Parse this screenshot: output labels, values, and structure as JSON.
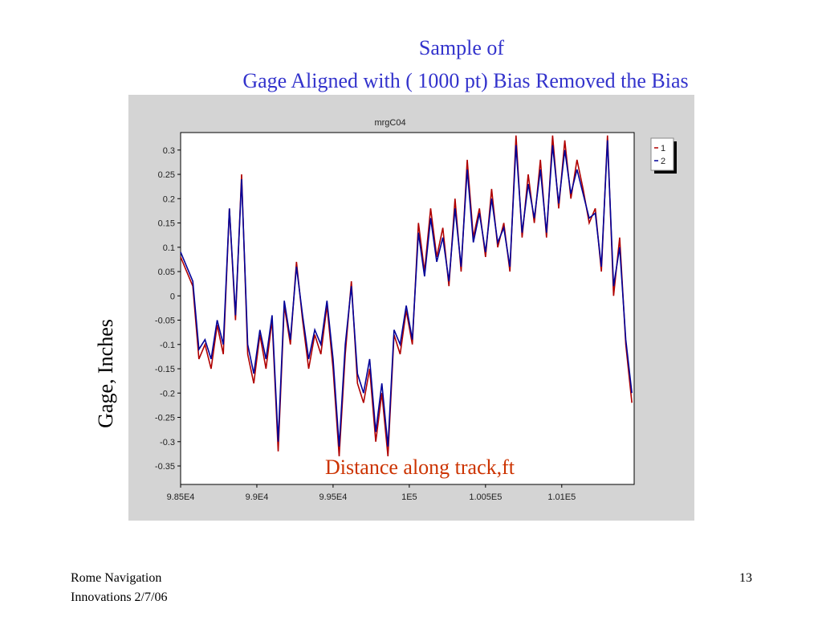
{
  "chart_data": {
    "type": "line",
    "title": "Sample of",
    "subtitle": "Gage Aligned with ( 1000 pt) Bias Removed the Bias",
    "plot_title": "mrgC04",
    "y_label": "Gage, Inches",
    "annotation": "Distance along track,ft",
    "x": [
      98500,
      98540,
      98580,
      98620,
      98660,
      98700,
      98740,
      98780,
      98820,
      98860,
      98900,
      98940,
      98980,
      99020,
      99060,
      99100,
      99140,
      99180,
      99220,
      99260,
      99300,
      99340,
      99380,
      99420,
      99460,
      99500,
      99540,
      99580,
      99620,
      99660,
      99700,
      99740,
      99780,
      99820,
      99860,
      99900,
      99940,
      99980,
      100020,
      100060,
      100100,
      100140,
      100180,
      100220,
      100260,
      100300,
      100340,
      100380,
      100420,
      100460,
      100500,
      100540,
      100580,
      100620,
      100660,
      100700,
      100740,
      100780,
      100820,
      100860,
      100900,
      100940,
      100980,
      101020,
      101060,
      101100,
      101140,
      101180,
      101220,
      101260,
      101300,
      101340,
      101380,
      101420,
      101460
    ],
    "series": [
      {
        "name": "1",
        "color": "#b00000",
        "values": [
          0.08,
          0.05,
          0.02,
          -0.13,
          -0.1,
          -0.15,
          -0.06,
          -0.12,
          0.18,
          -0.05,
          0.25,
          -0.12,
          -0.18,
          -0.08,
          -0.15,
          -0.05,
          -0.32,
          -0.02,
          -0.1,
          0.07,
          -0.05,
          -0.15,
          -0.08,
          -0.12,
          -0.02,
          -0.15,
          -0.33,
          -0.12,
          0.03,
          -0.18,
          -0.22,
          -0.15,
          -0.3,
          -0.2,
          -0.33,
          -0.08,
          -0.12,
          -0.03,
          -0.1,
          0.15,
          0.05,
          0.18,
          0.08,
          0.14,
          0.02,
          0.2,
          0.05,
          0.28,
          0.12,
          0.18,
          0.08,
          0.22,
          0.1,
          0.15,
          0.05,
          0.33,
          0.12,
          0.25,
          0.15,
          0.28,
          0.12,
          0.33,
          0.18,
          0.32,
          0.2,
          0.28,
          0.22,
          0.15,
          0.18,
          0.05,
          0.33,
          0.0,
          0.12,
          -0.1,
          -0.22
        ]
      },
      {
        "name": "2",
        "color": "#000099",
        "values": [
          0.09,
          0.06,
          0.03,
          -0.11,
          -0.09,
          -0.13,
          -0.05,
          -0.1,
          0.18,
          -0.04,
          0.24,
          -0.1,
          -0.16,
          -0.07,
          -0.13,
          -0.04,
          -0.3,
          -0.01,
          -0.09,
          0.06,
          -0.04,
          -0.13,
          -0.07,
          -0.1,
          -0.01,
          -0.13,
          -0.31,
          -0.1,
          0.02,
          -0.16,
          -0.2,
          -0.13,
          -0.28,
          -0.18,
          -0.31,
          -0.07,
          -0.1,
          -0.02,
          -0.09,
          0.13,
          0.04,
          0.16,
          0.07,
          0.12,
          0.03,
          0.18,
          0.06,
          0.26,
          0.11,
          0.17,
          0.09,
          0.2,
          0.11,
          0.14,
          0.06,
          0.31,
          0.13,
          0.23,
          0.16,
          0.26,
          0.13,
          0.31,
          0.19,
          0.3,
          0.21,
          0.26,
          0.21,
          0.16,
          0.17,
          0.06,
          0.32,
          0.02,
          0.1,
          -0.09,
          -0.2
        ]
      }
    ],
    "xlim": [
      98500,
      101475
    ],
    "ylim": [
      -0.388,
      0.336
    ],
    "xticks": [
      {
        "value": 98500,
        "label": "9.85E4"
      },
      {
        "value": 99000,
        "label": "9.9E4"
      },
      {
        "value": 99500,
        "label": "9.95E4"
      },
      {
        "value": 100000,
        "label": "1E5"
      },
      {
        "value": 100500,
        "label": "1.005E5"
      },
      {
        "value": 101000,
        "label": "1.01E5"
      }
    ],
    "yticks": [
      0.3,
      0.25,
      0.2,
      0.15,
      0.1,
      0.05,
      0,
      -0.05,
      -0.1,
      -0.15,
      -0.2,
      -0.25,
      -0.3,
      -0.35
    ],
    "grid": false,
    "legend": "upper-right"
  },
  "footer": {
    "left": [
      "Rome Navigation",
      "Innovations 2/7/06"
    ],
    "page": 13
  }
}
